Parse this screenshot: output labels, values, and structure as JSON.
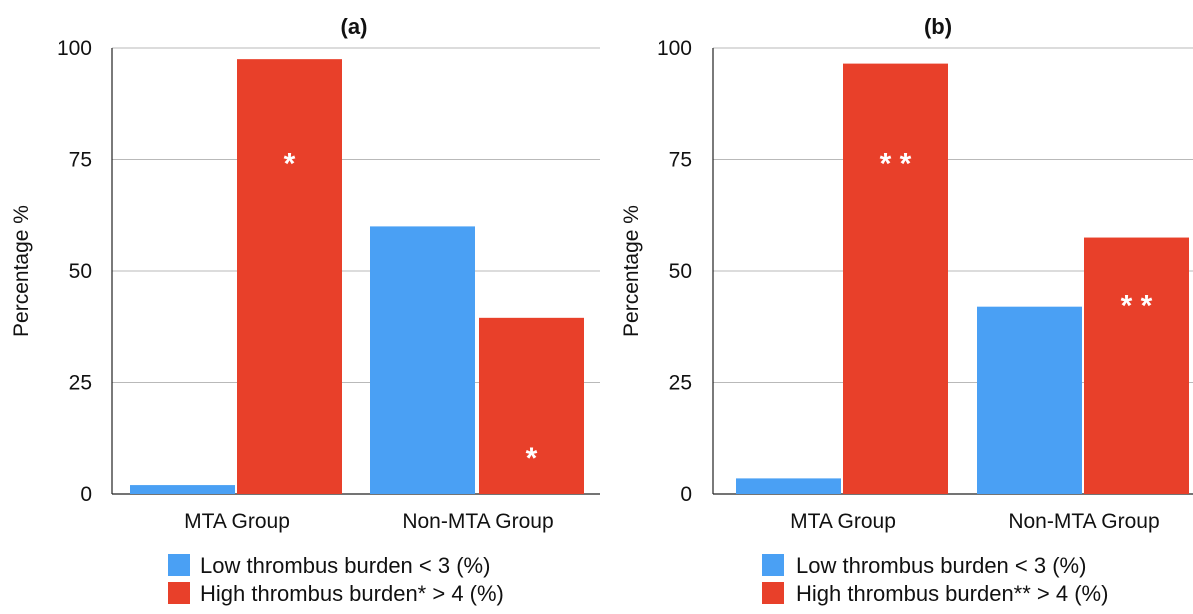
{
  "chart_data": [
    {
      "type": "bar",
      "title": "(a)",
      "ylabel": "Percentage %",
      "xlabel": "",
      "ylim": [
        0,
        100
      ],
      "yticks": [
        "0",
        "25",
        "50",
        "75",
        "100"
      ],
      "grid": true,
      "categories": [
        "MTA Group",
        "Non-MTA Group"
      ],
      "series": [
        {
          "name": "Low thrombus burden < 3  (%)",
          "color": "#4aa0f4",
          "values": [
            2,
            60
          ],
          "annotations": [
            "",
            ""
          ]
        },
        {
          "name": "High thrombus burden* > 4 (%)",
          "color": "#e8402a",
          "values": [
            97.5,
            39.5
          ],
          "annotations": [
            "*",
            "*"
          ]
        }
      ],
      "legend_position": "bottom"
    },
    {
      "type": "bar",
      "title": "(b)",
      "ylabel": "Percentage %",
      "xlabel": "",
      "ylim": [
        0,
        100
      ],
      "yticks": [
        "0",
        "25",
        "50",
        "75",
        "100"
      ],
      "grid": true,
      "categories": [
        "MTA Group",
        "Non-MTA Group"
      ],
      "series": [
        {
          "name": "Low thrombus burden < 3 (%)",
          "color": "#4aa0f4",
          "values": [
            3.5,
            42
          ],
          "annotations": [
            "",
            ""
          ]
        },
        {
          "name": "High thrombus burden** > 4 (%)",
          "color": "#e8402a",
          "values": [
            96.5,
            57.5
          ],
          "annotations": [
            "* *",
            "* *"
          ]
        }
      ],
      "legend_position": "bottom"
    }
  ]
}
